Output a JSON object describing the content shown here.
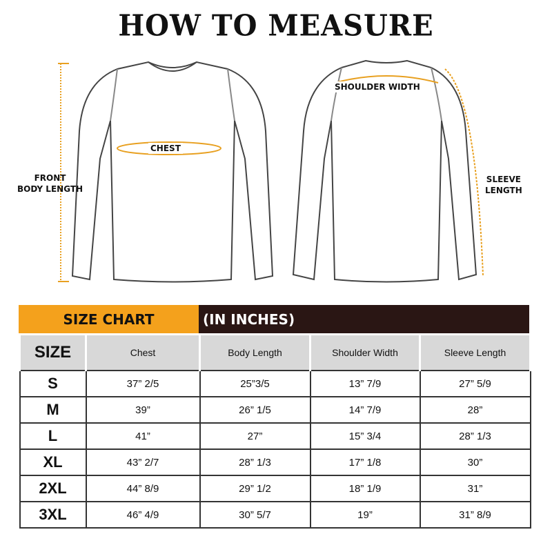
{
  "title": "HOW TO MEASURE",
  "diagram_labels": {
    "chest": "CHEST",
    "front_body_length": [
      "FRONT",
      "BODY LENGTH"
    ],
    "shoulder_width": "SHOULDER WIDTH",
    "sleeve_length": [
      "SLEEVE",
      "LENGTH"
    ]
  },
  "colors": {
    "accent": "#f4a11c",
    "dark": "#2a1614"
  },
  "size_chart": {
    "title": "SIZE CHART",
    "unit": "(IN INCHES)",
    "columns": [
      "SIZE",
      "Chest",
      "Body Length",
      "Shoulder Width",
      "Sleeve Length"
    ],
    "rows": [
      [
        "S",
        "37” 2/5",
        "25”3/5",
        "13” 7/9",
        "27” 5/9"
      ],
      [
        "M",
        "39”",
        "26” 1/5",
        "14” 7/9",
        "28”"
      ],
      [
        "L",
        "41”",
        "27”",
        "15” 3/4",
        "28” 1/3"
      ],
      [
        "XL",
        "43” 2/7",
        "28” 1/3",
        "17” 1/8",
        "30”"
      ],
      [
        "2XL",
        "44” 8/9",
        "29” 1/2",
        "18” 1/9",
        "31”"
      ],
      [
        "3XL",
        "46” 4/9",
        "30” 5/7",
        "19”",
        "31” 8/9"
      ]
    ]
  }
}
